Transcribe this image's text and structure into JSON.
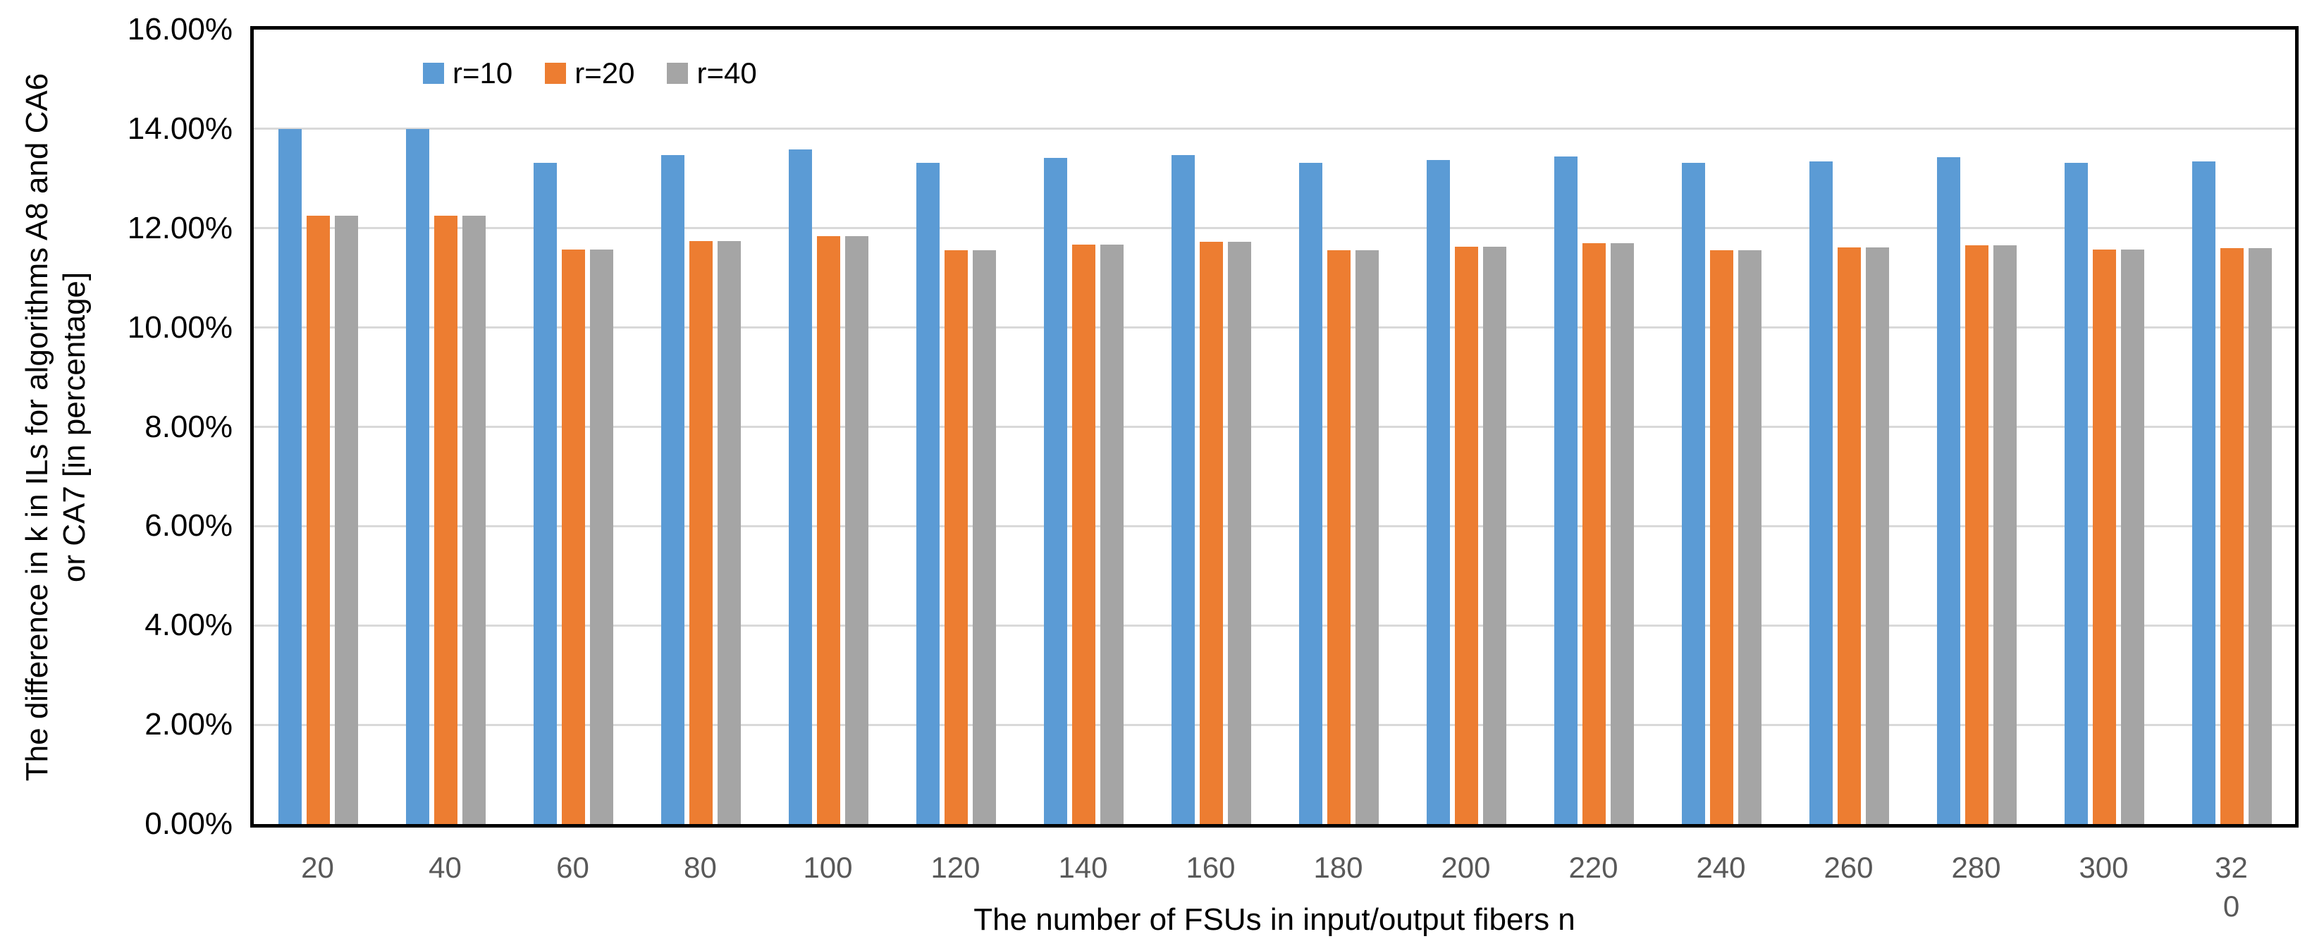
{
  "chart_data": {
    "type": "bar",
    "title": "",
    "xlabel": "The number of FSUs in input/output fibers n",
    "ylabel": "The difference in k in ILs for algorithms A8 and CA6\nor CA7 [in percentage]",
    "ylim": [
      0,
      16
    ],
    "grid": true,
    "legend_position": "top-inside",
    "categories": [
      "20",
      "40",
      "60",
      "80",
      "100",
      "120",
      "140",
      "160",
      "180",
      "200",
      "220",
      "240",
      "260",
      "280",
      "300",
      "320"
    ],
    "yticks": [
      {
        "value": 0,
        "label": "0.00%"
      },
      {
        "value": 2,
        "label": "2.00%"
      },
      {
        "value": 4,
        "label": "4.00%"
      },
      {
        "value": 6,
        "label": "6.00%"
      },
      {
        "value": 8,
        "label": "8.00%"
      },
      {
        "value": 10,
        "label": "10.00%"
      },
      {
        "value": 12,
        "label": "12.00%"
      },
      {
        "value": 14,
        "label": "14.00%"
      },
      {
        "value": 16,
        "label": "16.00%"
      }
    ],
    "series": [
      {
        "name": "r=10",
        "color": "#5B9BD5",
        "values": [
          14.0,
          14.0,
          13.32,
          13.48,
          13.58,
          13.31,
          13.42,
          13.48,
          13.31,
          13.38,
          13.44,
          13.31,
          13.35,
          13.43,
          13.32,
          13.35
        ]
      },
      {
        "name": "r=20",
        "color": "#ED7D31",
        "values": [
          12.25,
          12.25,
          11.57,
          11.74,
          11.84,
          11.56,
          11.67,
          11.73,
          11.56,
          11.63,
          11.7,
          11.56,
          11.61,
          11.66,
          11.57,
          11.6
        ]
      },
      {
        "name": "r=40",
        "color": "#A5A5A5",
        "values": [
          12.25,
          12.25,
          11.57,
          11.74,
          11.84,
          11.56,
          11.67,
          11.73,
          11.56,
          11.63,
          11.7,
          11.56,
          11.61,
          11.66,
          11.57,
          11.6
        ]
      }
    ],
    "colors": {
      "gridline": "#D9D9D9",
      "axis_border": "#000000",
      "x_tick_label": "#595959",
      "y_tick_label": "#000000"
    }
  }
}
